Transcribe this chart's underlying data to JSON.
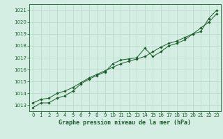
{
  "title": "Graphe pression niveau de la mer (hPa)",
  "background_color": "#d4eee4",
  "grid_color": "#b8d8c8",
  "line_color": "#1a5c28",
  "x_values": [
    0,
    1,
    2,
    3,
    4,
    5,
    6,
    7,
    8,
    9,
    10,
    11,
    12,
    13,
    14,
    15,
    16,
    17,
    18,
    19,
    20,
    21,
    22,
    23
  ],
  "series1": [
    1012.8,
    1013.2,
    1013.2,
    1013.6,
    1013.8,
    1014.2,
    1014.8,
    1015.2,
    1015.5,
    1015.8,
    1016.5,
    1016.8,
    1016.9,
    1017.0,
    1017.8,
    1017.1,
    1017.5,
    1018.0,
    1018.2,
    1018.5,
    1019.0,
    1019.2,
    1020.3,
    1021.0
  ],
  "series2": [
    1013.2,
    1013.5,
    1013.6,
    1014.0,
    1014.2,
    1014.5,
    1014.9,
    1015.3,
    1015.6,
    1015.9,
    1016.2,
    1016.5,
    1016.7,
    1016.9,
    1017.1,
    1017.5,
    1017.9,
    1018.2,
    1018.4,
    1018.7,
    1019.0,
    1019.5,
    1020.0,
    1020.7
  ],
  "ylim": [
    1012.5,
    1021.5
  ],
  "yticks": [
    1013,
    1014,
    1015,
    1016,
    1017,
    1018,
    1019,
    1020,
    1021
  ],
  "xlim": [
    -0.5,
    23.5
  ],
  "xticks": [
    0,
    1,
    2,
    3,
    4,
    5,
    6,
    7,
    8,
    9,
    10,
    11,
    12,
    13,
    14,
    15,
    16,
    17,
    18,
    19,
    20,
    21,
    22,
    23
  ],
  "tick_fontsize": 5.0,
  "label_fontsize": 6.0,
  "marker_size": 1.8,
  "line_width": 0.7
}
